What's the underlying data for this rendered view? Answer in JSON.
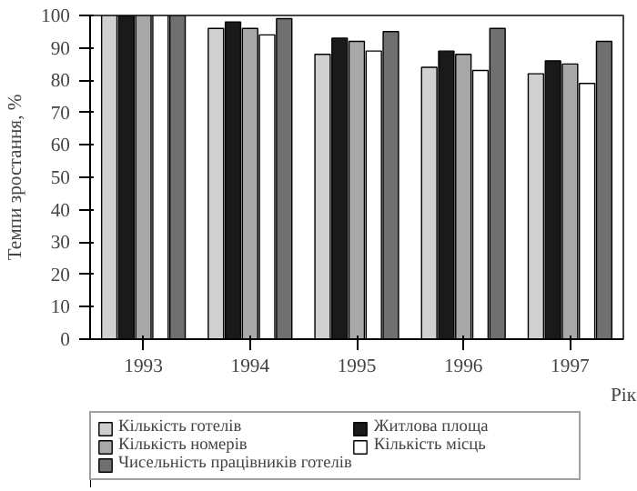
{
  "chart_data": {
    "type": "bar",
    "xlabel": "Рік",
    "ylabel": "Темпи зростання, %",
    "categories": [
      "1993",
      "1994",
      "1995",
      "1996",
      "1997"
    ],
    "series": [
      {
        "name": "Кількість готелів",
        "color": "#d0d0d0",
        "values": [
          100,
          96,
          88,
          84,
          82
        ]
      },
      {
        "name": "Житлова площа",
        "color": "#1a1a1a",
        "values": [
          100,
          98,
          93,
          89,
          86
        ]
      },
      {
        "name": "Кількість номерів",
        "color": "#a8a8a8",
        "values": [
          100,
          96,
          92,
          88,
          85
        ]
      },
      {
        "name": "Кількість місць",
        "color": "#ffffff",
        "values": [
          100,
          94,
          89,
          83,
          79
        ]
      },
      {
        "name": "Чисельність працівників готелів",
        "color": "#707070",
        "values": [
          100,
          99,
          95,
          96,
          92
        ]
      }
    ],
    "ylim": [
      0,
      100
    ],
    "yticks": [
      0,
      10,
      20,
      30,
      40,
      50,
      60,
      70,
      80,
      90,
      100
    ],
    "grid": false,
    "legend": "bottom"
  }
}
